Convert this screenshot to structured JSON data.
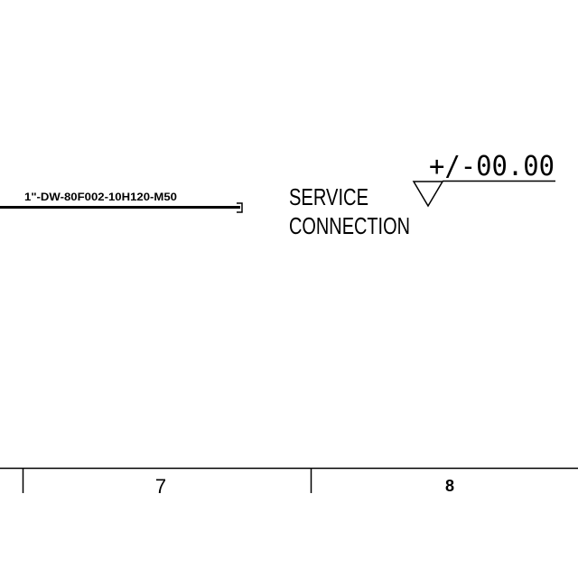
{
  "pipe": {
    "line_tag": "1\"-DW-80F002-10H120-M50"
  },
  "service_connection": {
    "line1": "SERVICE",
    "line2": "CONNECTION"
  },
  "elevation": {
    "value": "+/-00.00"
  },
  "title_block": {
    "zone_7": "7",
    "zone_8": "8"
  }
}
